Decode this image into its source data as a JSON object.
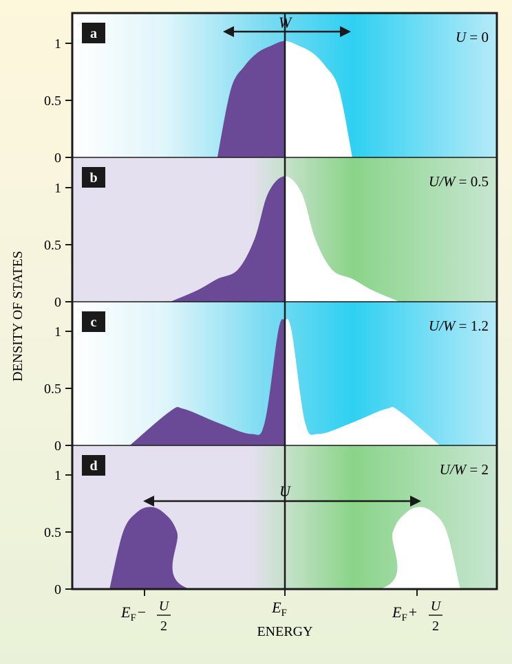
{
  "figure": {
    "ylabel": "DENSITY OF STATES",
    "xlabel": "ENERGY",
    "width_arrow_label": "W",
    "gap_arrow_label": "U",
    "x_ticks": [
      {
        "main": "E",
        "sub": "F",
        "sign": "−",
        "num": "U",
        "den": "2"
      },
      {
        "main": "E",
        "sub": "F"
      },
      {
        "main": "E",
        "sub": "F",
        "sign": "+",
        "num": "U",
        "den": "2"
      }
    ],
    "y_ticks": [
      "0",
      "0.5",
      "1"
    ],
    "colors": {
      "occupied": "#6a4a96",
      "empty": "#ffffff",
      "blue": "#2fd0f2",
      "green": "#8ad489",
      "lavender": "#e4e0ef",
      "frame": "#1a1a1a"
    }
  },
  "chart_data": [
    {
      "type": "area",
      "panel": "a",
      "label": "U = 0",
      "x": [
        -1,
        -0.8,
        -0.6,
        -0.4,
        -0.2,
        0,
        0.2,
        0.4,
        0.6,
        0.8,
        1
      ],
      "y": [
        0,
        0.6,
        0.8,
        0.92,
        0.98,
        1.02,
        0.98,
        0.92,
        0.8,
        0.6,
        0
      ],
      "ylim": [
        0,
        1.3
      ],
      "xlim": [
        -3.1,
        3.1
      ]
    },
    {
      "type": "area",
      "panel": "b",
      "label": "U/W = 0.5",
      "x": [
        -1.7,
        -1.3,
        -1,
        -0.7,
        -0.45,
        -0.25,
        0,
        0.25,
        0.45,
        0.7,
        1,
        1.3,
        1.7
      ],
      "y": [
        0,
        0.1,
        0.2,
        0.28,
        0.55,
        0.95,
        1.1,
        0.95,
        0.55,
        0.28,
        0.2,
        0.1,
        0
      ],
      "ylim": [
        0,
        1.3
      ],
      "xlim": [
        -3.1,
        3.1
      ]
    },
    {
      "type": "area",
      "panel": "c",
      "label": "U/W = 1.2",
      "x": [
        -2.3,
        -1.7,
        -1.5,
        -1,
        -0.5,
        -0.3,
        -0.1,
        0,
        0.1,
        0.3,
        0.5,
        1,
        1.5,
        1.7,
        2.3
      ],
      "y": [
        0,
        0.3,
        0.32,
        0.2,
        0.1,
        0.2,
        1.0,
        1.1,
        1.0,
        0.2,
        0.1,
        0.2,
        0.32,
        0.3,
        0
      ],
      "ylim": [
        0,
        1.3
      ],
      "xlim": [
        -3.1,
        3.1
      ]
    },
    {
      "type": "area",
      "panel": "d",
      "label": "U/W = 2",
      "x": [
        -2.6,
        -2.4,
        -2.2,
        -2,
        -1.8,
        -1.6,
        -1.4,
        1.4,
        1.6,
        1.8,
        2,
        2.2,
        2.4,
        2.6
      ],
      "y": [
        0,
        0.5,
        0.67,
        0.72,
        0.67,
        0.5,
        0,
        0,
        0.5,
        0.67,
        0.72,
        0.67,
        0.5,
        0
      ],
      "ylim": [
        0,
        1.3
      ],
      "xlim": [
        -3.1,
        3.1
      ]
    }
  ]
}
